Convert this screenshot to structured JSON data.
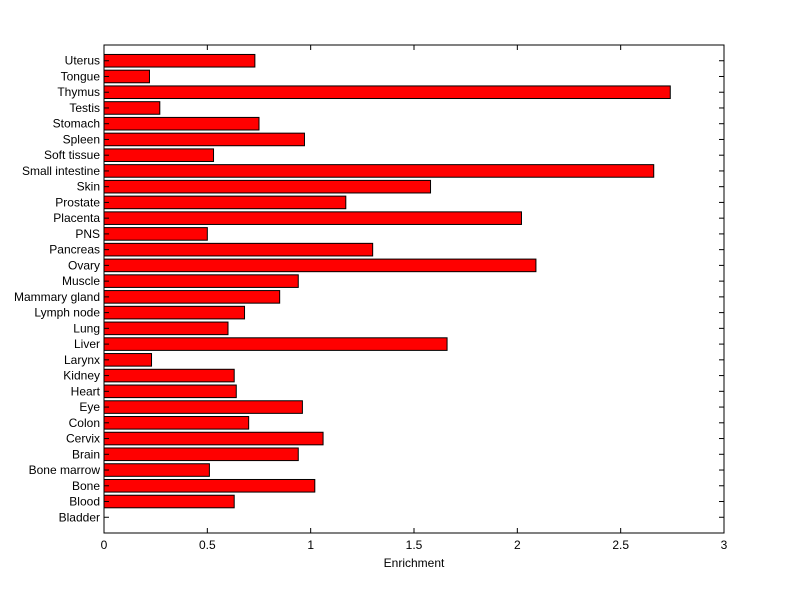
{
  "chart_data": {
    "type": "bar",
    "orientation": "horizontal",
    "categories": [
      "Bladder",
      "Blood",
      "Bone",
      "Bone marrow",
      "Brain",
      "Cervix",
      "Colon",
      "Eye",
      "Heart",
      "Kidney",
      "Larynx",
      "Liver",
      "Lung",
      "Lymph node",
      "Mammary gland",
      "Muscle",
      "Ovary",
      "Pancreas",
      "PNS",
      "Placenta",
      "Prostate",
      "Skin",
      "Small intestine",
      "Soft tissue",
      "Spleen",
      "Stomach",
      "Testis",
      "Thymus",
      "Tongue",
      "Uterus"
    ],
    "values": [
      0,
      0.63,
      1.02,
      0.51,
      0.94,
      1.06,
      0.7,
      0.96,
      0.64,
      0.63,
      0.23,
      1.66,
      0.6,
      0.68,
      0.85,
      0.94,
      2.09,
      1.3,
      0.5,
      2.02,
      1.17,
      1.58,
      2.66,
      0.53,
      0.97,
      0.75,
      0.27,
      2.74,
      0.22,
      0.73
    ],
    "xlabel": "Enrichment",
    "ylabel": "",
    "title": "",
    "xlim": [
      0,
      3
    ],
    "xticks": [
      "0",
      "0.5",
      "1",
      "1.5",
      "2",
      "2.5",
      "3"
    ],
    "bar_color": "#ff0000",
    "bar_edge_color": "#000000",
    "grid": false
  }
}
